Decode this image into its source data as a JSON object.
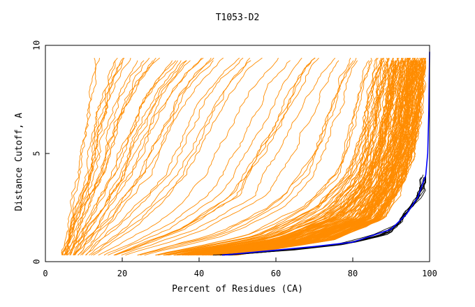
{
  "chart_data": {
    "type": "line",
    "title": "T1053-D2",
    "xlabel": "Percent of Residues (CA)",
    "ylabel": "Distance Cutoff, A",
    "xlim": [
      0,
      100
    ],
    "ylim": [
      0,
      10
    ],
    "x_ticks": [
      "0",
      "20",
      "40",
      "60",
      "80",
      "100"
    ],
    "y_ticks": [
      "0",
      "5",
      "10"
    ],
    "colors": {
      "other_models": "#ff8c00",
      "top_models": "#000000",
      "reference": "#0000ff"
    },
    "series_groups": [
      {
        "color": "other_models",
        "count": 180,
        "representative_curves": [
          {
            "x": [
              4,
              6,
              8,
              9,
              10,
              11
            ],
            "y": [
              0.3,
              2,
              4,
              6,
              8,
              9.5
            ]
          },
          {
            "x": [
              6,
              10,
              16,
              20,
              24,
              28,
              33
            ],
            "y": [
              0.3,
              2,
              4,
              6,
              7.5,
              8.5,
              9.5
            ]
          },
          {
            "x": [
              10,
              20,
              30,
              36,
              42,
              50
            ],
            "y": [
              0.3,
              2,
              4,
              6,
              8,
              9.5
            ]
          },
          {
            "x": [
              20,
              40,
              55,
              62,
              68,
              72,
              76
            ],
            "y": [
              0.3,
              1.5,
              3,
              5,
              7,
              8.5,
              9.5
            ]
          },
          {
            "x": [
              30,
              55,
              70,
              78,
              82,
              84,
              86
            ],
            "y": [
              0.3,
              1.2,
              2.5,
              4,
              6,
              8,
              9.5
            ]
          },
          {
            "x": [
              40,
              65,
              80,
              86,
              90,
              92,
              94
            ],
            "y": [
              0.3,
              1,
              2,
              3.5,
              5.5,
              7.5,
              9.5
            ]
          },
          {
            "x": [
              50,
              75,
              88,
              93,
              96,
              98,
              99
            ],
            "y": [
              0.3,
              1,
              2,
              3.5,
              5,
              7,
              9.5
            ]
          }
        ]
      },
      {
        "color": "top_models",
        "count": 10,
        "representative_curves": [
          {
            "x": [
              43,
              60,
              75,
              85,
              91,
              95,
              97,
              99
            ],
            "y": [
              0.3,
              0.5,
              0.8,
              1.2,
              1.7,
              2.5,
              3.2,
              4.2
            ]
          },
          {
            "x": [
              45,
              63,
              78,
              86,
              92,
              96,
              98,
              99
            ],
            "y": [
              0.3,
              0.5,
              0.8,
              1.2,
              1.8,
              2.8,
              3.5,
              4.0
            ]
          },
          {
            "x": [
              48,
              66,
              80,
              90,
              94,
              97,
              99
            ],
            "y": [
              0.3,
              0.6,
              0.9,
              1.3,
              2.2,
              3.0,
              4.1
            ]
          }
        ]
      },
      {
        "color": "reference",
        "count": 1,
        "representative_curves": [
          {
            "x": [
              46,
              70,
              80,
              90,
              94,
              97,
              99,
              99.5,
              99.8,
              100
            ],
            "y": [
              0.3,
              0.7,
              0.9,
              1.5,
              2.2,
              3.0,
              4.0,
              5.0,
              7.0,
              9.7
            ]
          }
        ]
      }
    ]
  }
}
